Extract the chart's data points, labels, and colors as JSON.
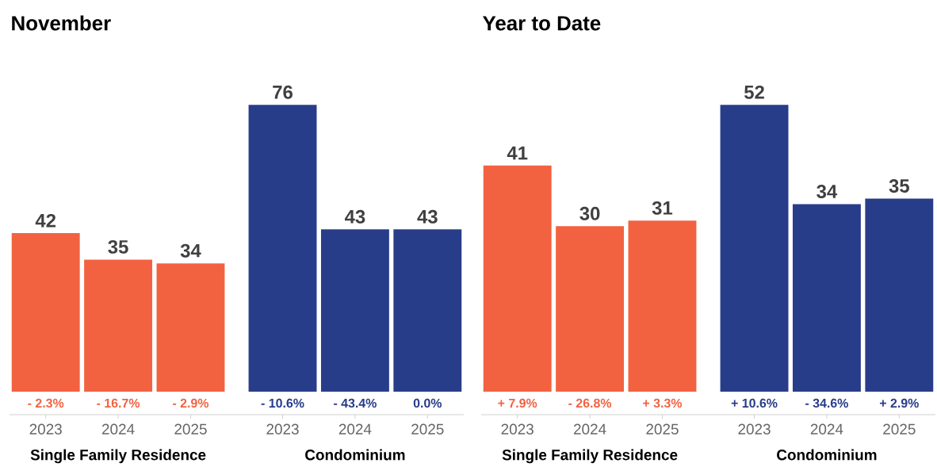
{
  "chart_data": [
    {
      "type": "bar",
      "title": "November",
      "categories": [
        "2023",
        "2024",
        "2025",
        "2023",
        "2024",
        "2025"
      ],
      "series": [
        {
          "color": "#f26241",
          "values": [
            42,
            35,
            34,
            null,
            null,
            null
          ]
        },
        {
          "color": "#283d8a",
          "values": [
            null,
            null,
            null,
            76,
            43,
            43
          ]
        }
      ],
      "data_labels": true,
      "annotations": [
        "- 2.3%",
        "- 16.7%",
        "- 2.9%",
        "- 10.6%",
        "- 43.4%",
        "0.0%",
        "Single Family Residence",
        "Condominium"
      ]
    },
    {
      "type": "bar",
      "title": "Year to Date",
      "categories": [
        "2023",
        "2024",
        "2025",
        "2023",
        "2024",
        "2025"
      ],
      "series": [
        {
          "color": "#f26241",
          "values": [
            41,
            30,
            31,
            null,
            null,
            null
          ]
        },
        {
          "color": "#283d8a",
          "values": [
            null,
            null,
            null,
            52,
            34,
            35
          ]
        }
      ],
      "data_labels": true,
      "annotations": [
        "+ 7.9%",
        "- 26.8%",
        "+ 3.3%",
        "+ 10.6%",
        "- 34.6%",
        "+ 2.9%",
        "Single Family Residence",
        "Condominium"
      ]
    }
  ]
}
